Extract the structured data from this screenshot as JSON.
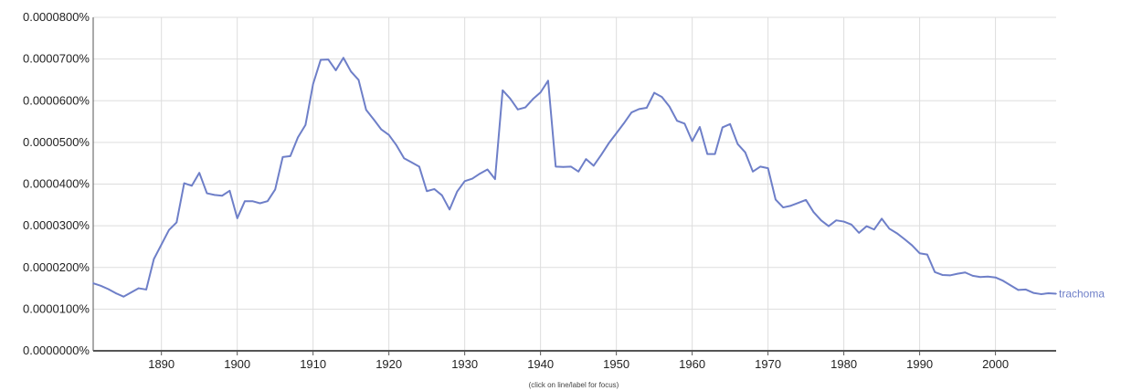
{
  "chart_data": {
    "type": "line",
    "title": "",
    "xlabel": "",
    "ylabel": "",
    "xlim": [
      1881,
      2008
    ],
    "ylim": [
      0,
      8e-07
    ],
    "x_ticks": [
      1890,
      1900,
      1910,
      1920,
      1930,
      1940,
      1950,
      1960,
      1970,
      1980,
      1990,
      2000
    ],
    "y_ticks": [
      {
        "value": 0.0,
        "label": "0.0000000%"
      },
      {
        "value": 1e-07,
        "label": "0.0000100%"
      },
      {
        "value": 2e-07,
        "label": "0.0000200%"
      },
      {
        "value": 3e-07,
        "label": "0.0000300%"
      },
      {
        "value": 4e-07,
        "label": "0.0000400%"
      },
      {
        "value": 5e-07,
        "label": "0.0000500%"
      },
      {
        "value": 6e-07,
        "label": "0.0000600%"
      },
      {
        "value": 7e-07,
        "label": "0.0000700%"
      },
      {
        "value": 8e-07,
        "label": "0.0000800%"
      }
    ],
    "grid": true,
    "series": [
      {
        "name": "trachoma",
        "color": "#6e7fc8",
        "x": [
          1881,
          1882,
          1883,
          1884,
          1885,
          1886,
          1887,
          1888,
          1889,
          1890,
          1891,
          1892,
          1893,
          1894,
          1895,
          1896,
          1897,
          1898,
          1899,
          1900,
          1901,
          1902,
          1903,
          1904,
          1905,
          1906,
          1907,
          1908,
          1909,
          1910,
          1911,
          1912,
          1913,
          1914,
          1915,
          1916,
          1917,
          1918,
          1919,
          1920,
          1921,
          1922,
          1923,
          1924,
          1925,
          1926,
          1927,
          1928,
          1929,
          1930,
          1931,
          1932,
          1933,
          1934,
          1935,
          1936,
          1937,
          1938,
          1939,
          1940,
          1941,
          1942,
          1943,
          1944,
          1945,
          1946,
          1947,
          1948,
          1949,
          1950,
          1951,
          1952,
          1953,
          1954,
          1955,
          1956,
          1957,
          1958,
          1959,
          1960,
          1961,
          1962,
          1963,
          1964,
          1965,
          1966,
          1967,
          1968,
          1969,
          1970,
          1971,
          1972,
          1973,
          1974,
          1975,
          1976,
          1977,
          1978,
          1979,
          1980,
          1981,
          1982,
          1983,
          1984,
          1985,
          1986,
          1987,
          1988,
          1989,
          1990,
          1991,
          1992,
          1993,
          1994,
          1995,
          1996,
          1997,
          1998,
          1999,
          2000,
          2001,
          2002,
          2003,
          2004,
          2005,
          2006,
          2007,
          2008
        ],
        "values": [
          1.62e-07,
          1.56e-07,
          1.48e-07,
          1.38e-07,
          1.3e-07,
          1.4e-07,
          1.5e-07,
          1.47e-07,
          2.2e-07,
          2.55e-07,
          2.9e-07,
          3.08e-07,
          4.02e-07,
          3.96e-07,
          4.27e-07,
          3.78e-07,
          3.74e-07,
          3.72e-07,
          3.84e-07,
          3.18e-07,
          3.59e-07,
          3.59e-07,
          3.54e-07,
          3.59e-07,
          3.87e-07,
          4.65e-07,
          4.67e-07,
          5.12e-07,
          5.42e-07,
          6.4e-07,
          6.98e-07,
          6.99e-07,
          6.73e-07,
          7.03e-07,
          6.7e-07,
          6.5e-07,
          5.78e-07,
          5.55e-07,
          5.31e-07,
          5.18e-07,
          4.93e-07,
          4.62e-07,
          4.52e-07,
          4.42e-07,
          3.83e-07,
          3.88e-07,
          3.73e-07,
          3.39e-07,
          3.82e-07,
          4.07e-07,
          4.13e-07,
          4.25e-07,
          4.35e-07,
          4.12e-07,
          6.25e-07,
          6.05e-07,
          5.79e-07,
          5.84e-07,
          6.04e-07,
          6.2e-07,
          6.48e-07,
          4.42e-07,
          4.41e-07,
          4.42e-07,
          4.3e-07,
          4.6e-07,
          4.44e-07,
          4.7e-07,
          4.98e-07,
          5.22e-07,
          5.46e-07,
          5.72e-07,
          5.8e-07,
          5.83e-07,
          6.19e-07,
          6.09e-07,
          5.86e-07,
          5.52e-07,
          5.45e-07,
          5.03e-07,
          5.37e-07,
          4.72e-07,
          4.72e-07,
          5.36e-07,
          5.44e-07,
          4.96e-07,
          4.76e-07,
          4.3e-07,
          4.42e-07,
          4.38e-07,
          3.63e-07,
          3.44e-07,
          3.48e-07,
          3.55e-07,
          3.62e-07,
          3.33e-07,
          3.13e-07,
          2.99e-07,
          3.13e-07,
          3.1e-07,
          3.03e-07,
          2.83e-07,
          2.99e-07,
          2.91e-07,
          3.17e-07,
          2.93e-07,
          2.82e-07,
          2.68e-07,
          2.53e-07,
          2.34e-07,
          2.31e-07,
          1.89e-07,
          1.82e-07,
          1.81e-07,
          1.85e-07,
          1.88e-07,
          1.8e-07,
          1.77e-07,
          1.78e-07,
          1.76e-07,
          1.68e-07,
          1.57e-07,
          1.46e-07,
          1.47e-07,
          1.39e-07,
          1.36e-07,
          1.38e-07,
          1.37e-07
        ]
      }
    ]
  },
  "footer_note": "(click on line/label for focus)"
}
